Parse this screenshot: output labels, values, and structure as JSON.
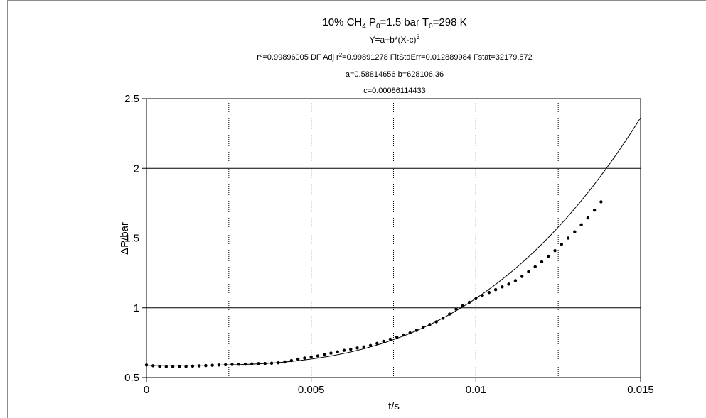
{
  "chart_data": {
    "type": "scatter",
    "title": {
      "main": "10% CH",
      "main_sub1": "4",
      "main_mid": " P",
      "main_sub2": "0",
      "main_mid2": "=1.5 bar  T",
      "main_sub3": "0",
      "main_end": "=298 K"
    },
    "equation": {
      "text": "Y=a+b*(X-c)",
      "sup": "3"
    },
    "stats": {
      "part1": "r",
      "sup1": "2",
      "part2": "=0.99896005  DF Adj r",
      "sup2": "2",
      "part3": "=0.99891278  FitStdErr=0.012889984  Fstat=32179.572"
    },
    "params_line1": "a=0.58814656 b=628106.36",
    "params_line2": "c=0.00086114433",
    "xlabel": "t/s",
    "ylabel": "ΔP/bar",
    "xlim": [
      0,
      0.015
    ],
    "ylim": [
      0.5,
      2.5
    ],
    "x_ticks": [
      0,
      0.005,
      0.01,
      0.015
    ],
    "x_tick_labels": [
      "0",
      "0.005",
      "0.01",
      "0.015"
    ],
    "y_ticks": [
      0.5,
      1,
      1.5,
      2,
      2.5
    ],
    "y_tick_labels": [
      "0.5",
      "1",
      "1.5",
      "2",
      "2.5"
    ],
    "vertical_dotted_gridlines_x": [
      0.0025,
      0.005,
      0.0075,
      0.01,
      0.0125
    ],
    "horizontal_gridlines_y": [
      1,
      1.5,
      2
    ],
    "fit": {
      "a": 0.58814656,
      "b": 628106.36,
      "c": 0.00086114433
    },
    "series": [
      {
        "style": "dots",
        "x": [
          0.0,
          0.0002,
          0.0004,
          0.0006,
          0.0008,
          0.001,
          0.0012,
          0.0014,
          0.0016,
          0.0018,
          0.002,
          0.0022,
          0.0024,
          0.0026,
          0.0028,
          0.003,
          0.0032,
          0.0034,
          0.0036,
          0.0038,
          0.004,
          0.0042,
          0.0044,
          0.0046,
          0.0048,
          0.005,
          0.0052,
          0.0054,
          0.0056,
          0.0058,
          0.006,
          0.0062,
          0.0064,
          0.0066,
          0.0068,
          0.007,
          0.0072,
          0.0074,
          0.0076,
          0.0078,
          0.008,
          0.0082,
          0.0084,
          0.0086,
          0.0088,
          0.009,
          0.0092,
          0.0094,
          0.0096,
          0.0098,
          0.01,
          0.0102,
          0.0104,
          0.0106,
          0.0108,
          0.011,
          0.0112,
          0.0114,
          0.0116,
          0.0118,
          0.012,
          0.0122,
          0.0124,
          0.0126,
          0.0128,
          0.013,
          0.0132,
          0.0134,
          0.0136,
          0.0138
        ],
        "y": [
          0.59,
          0.585,
          0.58,
          0.578,
          0.578,
          0.578,
          0.579,
          0.582,
          0.584,
          0.586,
          0.588,
          0.59,
          0.592,
          0.594,
          0.595,
          0.596,
          0.598,
          0.6,
          0.601,
          0.603,
          0.606,
          0.612,
          0.622,
          0.632,
          0.64,
          0.648,
          0.655,
          0.665,
          0.675,
          0.685,
          0.695,
          0.703,
          0.712,
          0.72,
          0.73,
          0.745,
          0.76,
          0.775,
          0.79,
          0.805,
          0.82,
          0.838,
          0.86,
          0.88,
          0.9,
          0.925,
          0.955,
          0.99,
          1.015,
          1.04,
          1.065,
          1.09,
          1.11,
          1.13,
          1.15,
          1.17,
          1.195,
          1.225,
          1.26,
          1.295,
          1.33,
          1.37,
          1.41,
          1.455,
          1.5,
          1.545,
          1.595,
          1.645,
          1.7,
          1.76
        ]
      }
    ]
  }
}
